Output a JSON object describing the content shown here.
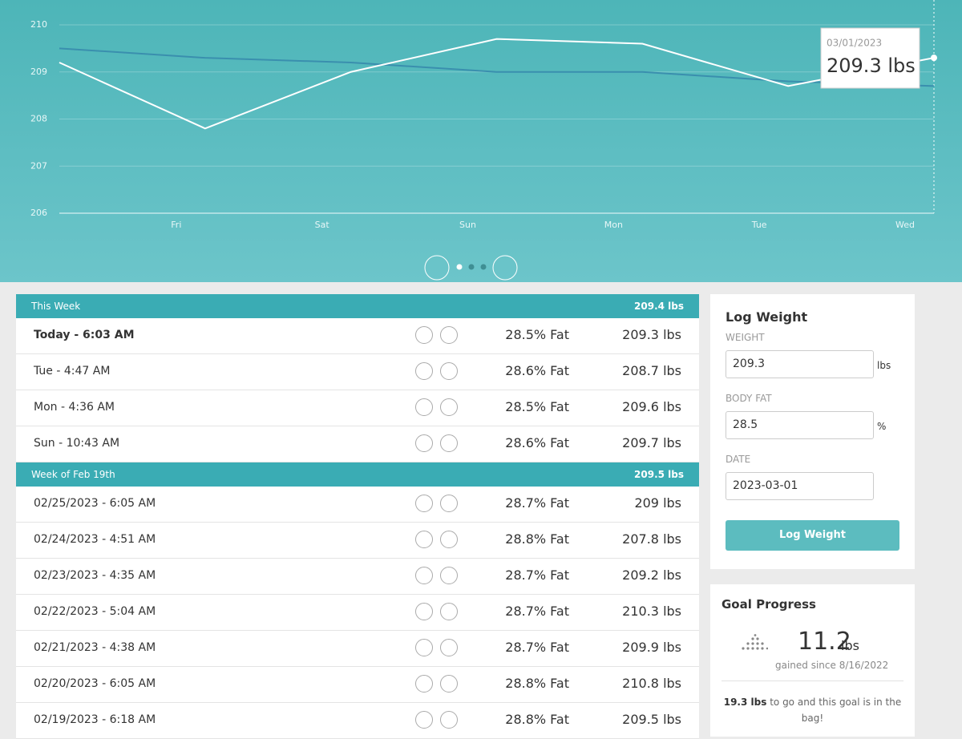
{
  "chart_data": {
    "type": "line",
    "categories": [
      null,
      "Fri",
      "Sat",
      "Sun",
      "Mon",
      "Tue",
      "Wed"
    ],
    "series": [
      {
        "color": "#ffffff",
        "values": [
          209.2,
          207.8,
          209,
          209.7,
          209.6,
          208.7,
          209.3
        ]
      },
      {
        "color": "#3a8fae",
        "values": [
          209.5,
          209.3,
          209.2,
          209.0,
          209.0,
          208.8,
          208.7
        ]
      }
    ],
    "ylim": [
      206,
      210
    ],
    "yticks": [
      206,
      207,
      208,
      209,
      210
    ],
    "grid": true,
    "tooltip": {
      "date": "03/01/2023",
      "value": "209.3 lbs"
    }
  },
  "weeks": [
    {
      "title": "This Week",
      "average": "209.4 lbs",
      "entries": [
        {
          "time": "Today - 6:03 AM",
          "fat": "28.5% Fat",
          "weight": "209.3 lbs"
        },
        {
          "time": "Tue - 4:47 AM",
          "fat": "28.6% Fat",
          "weight": "208.7 lbs"
        },
        {
          "time": "Mon - 4:36 AM",
          "fat": "28.5% Fat",
          "weight": "209.6 lbs"
        },
        {
          "time": "Sun - 10:43 AM",
          "fat": "28.6% Fat",
          "weight": "209.7 lbs"
        }
      ]
    },
    {
      "title": "Week of Feb 19th",
      "average": "209.5 lbs",
      "entries": [
        {
          "time": "02/25/2023 - 6:05 AM",
          "fat": "28.7% Fat",
          "weight": "209 lbs"
        },
        {
          "time": "02/24/2023 - 4:51 AM",
          "fat": "28.8% Fat",
          "weight": "207.8 lbs"
        },
        {
          "time": "02/23/2023 - 4:35 AM",
          "fat": "28.7% Fat",
          "weight": "209.2 lbs"
        },
        {
          "time": "02/22/2023 - 5:04 AM",
          "fat": "28.7% Fat",
          "weight": "210.3 lbs"
        },
        {
          "time": "02/21/2023 - 4:38 AM",
          "fat": "28.7% Fat",
          "weight": "209.9 lbs"
        },
        {
          "time": "02/20/2023 - 6:05 AM",
          "fat": "28.8% Fat",
          "weight": "210.8 lbs"
        },
        {
          "time": "02/19/2023 - 6:18 AM",
          "fat": "28.8% Fat",
          "weight": "209.5 lbs"
        }
      ]
    }
  ],
  "log_weight": {
    "title": "Log Weight",
    "weight_label": "WEIGHT",
    "weight": "209.3",
    "weight_unit": "lbs",
    "fat_label": "BODY FAT",
    "fat": "28.5",
    "fat_unit": "%",
    "date_label": "DATE",
    "date": "2023-03-01",
    "button": "Log Weight"
  },
  "goal": {
    "title": "Goal Progress",
    "amount": "11.2",
    "unit": "lbs",
    "since": "gained since 8/16/2022",
    "remaining": "19.3 lbs",
    "remaining_text": "to go and this goal is in the bag!"
  }
}
